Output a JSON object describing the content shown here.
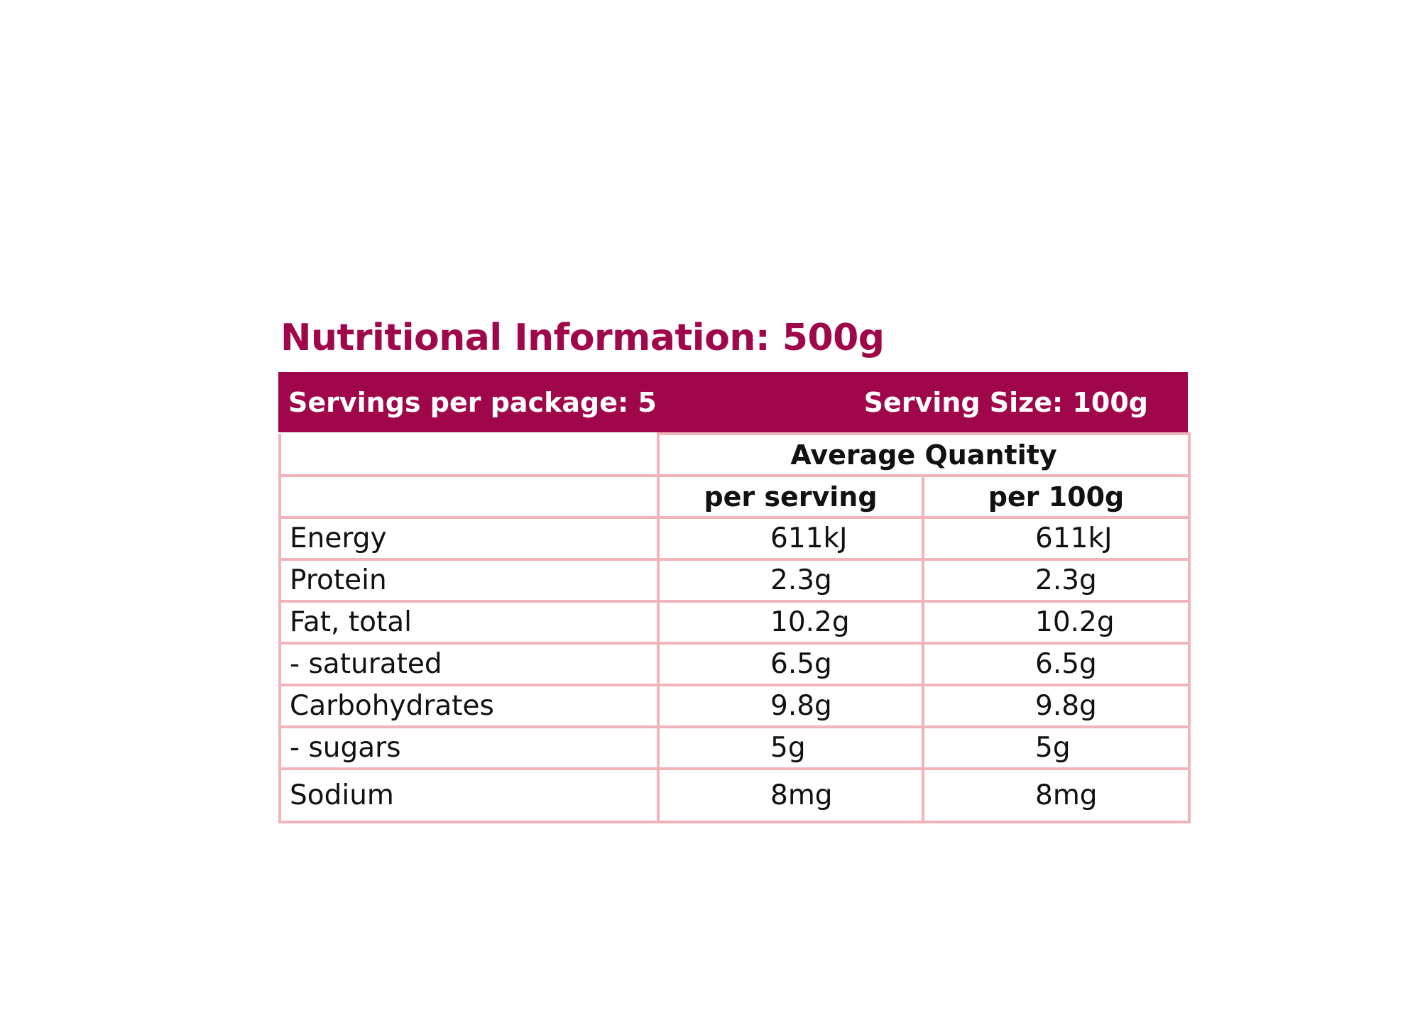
{
  "title": "Nutritional Information:  500g",
  "header": {
    "servings_per_package": "Servings per package: 5",
    "serving_size": "Serving Size: 100g"
  },
  "columns": {
    "group_heading": "Average Quantity",
    "per_serving": "per serving",
    "per_100g": "per 100g"
  },
  "rows": [
    {
      "label": "Energy",
      "per_serving": "611kJ",
      "per_100g": "611kJ"
    },
    {
      "label": "Protein",
      "per_serving": "2.3g",
      "per_100g": "2.3g"
    },
    {
      "label": "Fat, total",
      "per_serving": "10.2g",
      "per_100g": "10.2g"
    },
    {
      "label": "- saturated",
      "per_serving": "6.5g",
      "per_100g": "6.5g"
    },
    {
      "label": "Carbohydrates",
      "per_serving": "9.8g",
      "per_100g": "9.8g"
    },
    {
      "label": "- sugars",
      "per_serving": "5g",
      "per_100g": "5g"
    },
    {
      "label": "Sodium",
      "per_serving": "8mg",
      "per_100g": "8mg"
    }
  ],
  "colors": {
    "brand": "#a0064a",
    "border": "#f0b4ba"
  }
}
